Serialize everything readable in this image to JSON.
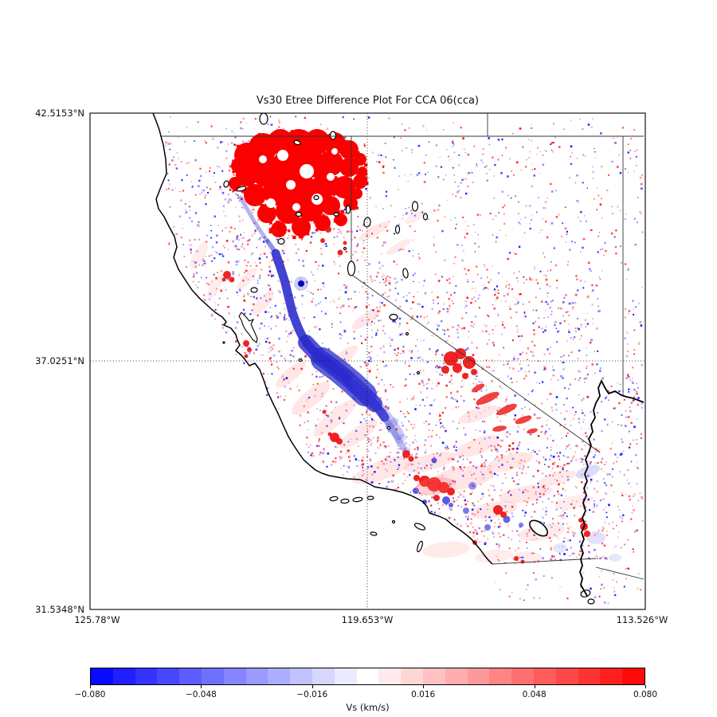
{
  "chart_data": {
    "type": "heatmap",
    "title": "Vs30 Etree Difference Plot For CCA 06(cca)",
    "subtitle": "",
    "map_region": "California and surrounding states",
    "extent": {
      "lon_deg_west": [
        125.78,
        113.526
      ],
      "lat_deg_north": [
        31.5348,
        42.5153
      ]
    },
    "x_axis": {
      "tick_labels": [
        "125.78°W",
        "119.653°W",
        "113.526°W"
      ],
      "tick_values_deg_west": [
        125.78,
        119.653,
        113.526
      ]
    },
    "y_axis": {
      "tick_labels": [
        "42.5153°N",
        "37.0251°N",
        "31.5348°N"
      ],
      "tick_values_deg_north": [
        42.5153,
        37.0251,
        31.5348
      ]
    },
    "gridlines": {
      "style": "dotted",
      "x_at_deg_west": 119.653,
      "y_at_deg_north": 37.0251
    },
    "colorbar": {
      "label": "Vs (km/s)",
      "orientation": "horizontal",
      "colormap": "bwr",
      "min": -0.08,
      "max": 0.08,
      "n_segments": 25,
      "tick_values": [
        -0.08,
        -0.048,
        -0.016,
        0.016,
        0.048,
        0.08
      ],
      "tick_labels": [
        "−0.080",
        "−0.048",
        "−0.016",
        "0.016",
        "0.048",
        "0.080"
      ]
    },
    "notable_regions": [
      {
        "feature": "large saturated positive anomaly, northern California",
        "approx_lon": [
          -122.6,
          -119.8
        ],
        "approx_lat": [
          39.7,
          42.0
        ],
        "value_km_s": "about +0.08 (saturated red)"
      },
      {
        "feature": "elongated negative anomaly along Central Valley",
        "approx_lon": [
          -121.8,
          -119.2
        ],
        "approx_lat": [
          35.0,
          40.0
        ],
        "value_km_s": "about -0.04 to -0.08 (blue band)"
      },
      {
        "feature": "positive anomaly cluster east of southern Sierra Nevada",
        "approx_lon": [
          -118.1,
          -115.9
        ],
        "approx_lat": [
          35.6,
          37.3
        ],
        "value_km_s": "about +0.04 to +0.08"
      },
      {
        "feature": "dense mixed small-scale anomalies across southern California",
        "approx_lon": [
          -119.9,
          -114.3
        ],
        "approx_lat": [
          32.4,
          34.9
        ],
        "value_km_s": "about ±0.005 to ±0.05"
      },
      {
        "feature": "sparse low-amplitude speckle over Nevada / Arizona portion",
        "value_km_s": "about ±0.005 to ±0.02"
      }
    ]
  }
}
